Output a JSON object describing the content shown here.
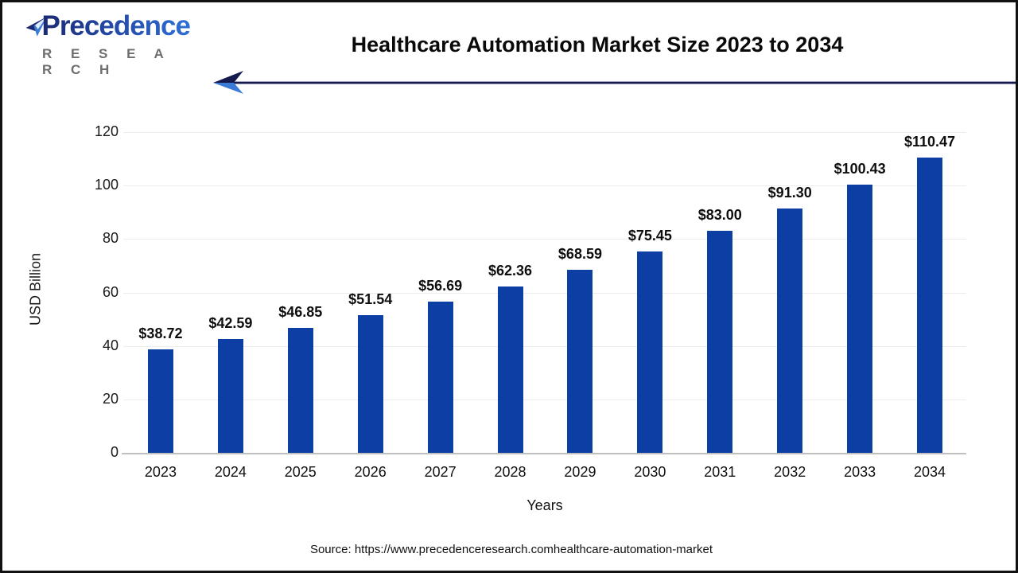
{
  "header": {
    "logo_brand": "Precedence",
    "logo_sub": "R E S E A R C H",
    "title": "Healthcare Automation Market Size 2023 to 2034"
  },
  "chart_data": {
    "type": "bar",
    "title": "Healthcare Automation Market Size 2023 to 2034",
    "categories": [
      "2023",
      "2024",
      "2025",
      "2026",
      "2027",
      "2028",
      "2029",
      "2030",
      "2031",
      "2032",
      "2033",
      "2034"
    ],
    "values": [
      38.72,
      42.59,
      46.85,
      51.54,
      56.69,
      62.36,
      68.59,
      75.45,
      83.0,
      91.3,
      100.43,
      110.47
    ],
    "value_labels": [
      "$38.72",
      "$42.59",
      "$46.85",
      "$51.54",
      "$56.69",
      "$62.36",
      "$68.59",
      "$75.45",
      "$83.00",
      "$91.30",
      "$100.43",
      "$110.47"
    ],
    "xlabel": "Years",
    "ylabel": "USD Billion",
    "ylim": [
      0,
      120
    ],
    "yticks": [
      0,
      20,
      40,
      60,
      80,
      100,
      120
    ],
    "grid": true,
    "legend": "none",
    "bar_color": "#0d3ea3",
    "gridline_color": "#ececec",
    "axis_line_color": "#bfbfbf"
  },
  "footer": {
    "source": "Source: https://www.precedenceresearch.comhealthcare-automation-market"
  },
  "colors": {
    "accent_navy": "#141a4e",
    "arrow_light_blue": "#3a7bd5",
    "logo_dark": "#1b2a72",
    "logo_light": "#2f6fd6",
    "research_gray": "#6e6e6e"
  }
}
